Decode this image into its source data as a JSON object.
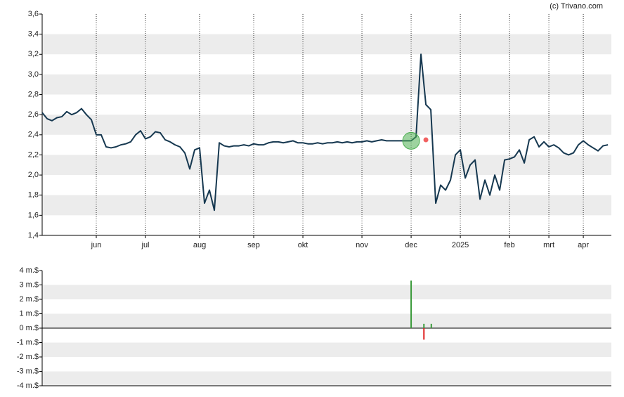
{
  "chart_data": [
    {
      "type": "line",
      "watermark": "(c) Trivano.com",
      "xlim": [
        0,
        115.7
      ],
      "xticks": [
        {
          "value": 11,
          "label": "jun"
        },
        {
          "value": 21,
          "label": "jul"
        },
        {
          "value": 32,
          "label": "aug"
        },
        {
          "value": 43,
          "label": "sep"
        },
        {
          "value": 53,
          "label": "okt"
        },
        {
          "value": 65,
          "label": "nov"
        },
        {
          "value": 75,
          "label": "dec"
        },
        {
          "value": 85,
          "label": "2025"
        },
        {
          "value": 95,
          "label": "feb"
        },
        {
          "value": 103,
          "label": "mrt"
        },
        {
          "value": 110,
          "label": "apr"
        }
      ],
      "ylim": [
        1.4,
        3.6
      ],
      "yticks": [
        {
          "value": 3.6,
          "label": "3,6"
        },
        {
          "value": 3.4,
          "label": "3,4"
        },
        {
          "value": 3.2,
          "label": "3,2"
        },
        {
          "value": 3.0,
          "label": "3,0"
        },
        {
          "value": 2.8,
          "label": "2,8"
        },
        {
          "value": 2.6,
          "label": "2,6"
        },
        {
          "value": 2.4,
          "label": "2,4"
        },
        {
          "value": 2.2,
          "label": "2,2"
        },
        {
          "value": 2.0,
          "label": "2,0"
        },
        {
          "value": 1.8,
          "label": "1,8"
        },
        {
          "value": 1.6,
          "label": "1,6"
        },
        {
          "value": 1.4,
          "label": "1,4"
        }
      ],
      "grid": true,
      "series": [
        {
          "color": "#163850",
          "values": [
            2.62,
            2.56,
            2.54,
            2.57,
            2.58,
            2.63,
            2.6,
            2.62,
            2.66,
            2.6,
            2.55,
            2.4,
            2.4,
            2.28,
            2.27,
            2.28,
            2.3,
            2.31,
            2.33,
            2.4,
            2.44,
            2.36,
            2.38,
            2.43,
            2.42,
            2.35,
            2.33,
            2.3,
            2.28,
            2.22,
            2.06,
            2.25,
            2.27,
            1.72,
            1.85,
            1.65,
            2.32,
            2.29,
            2.28,
            2.29,
            2.29,
            2.3,
            2.29,
            2.31,
            2.3,
            2.3,
            2.32,
            2.33,
            2.33,
            2.32,
            2.33,
            2.34,
            2.32,
            2.32,
            2.31,
            2.31,
            2.32,
            2.31,
            2.32,
            2.32,
            2.33,
            2.32,
            2.33,
            2.32,
            2.33,
            2.33,
            2.34,
            2.33,
            2.34,
            2.35,
            2.34,
            2.34,
            2.34,
            2.34,
            2.34,
            2.34,
            2.38,
            3.2,
            2.7,
            2.65,
            1.72,
            1.9,
            1.85,
            1.95,
            2.2,
            2.25,
            1.97,
            2.1,
            2.15,
            1.76,
            1.95,
            1.8,
            2.0,
            1.85,
            2.15,
            2.16,
            2.18,
            2.25,
            2.12,
            2.35,
            2.38,
            2.28,
            2.33,
            2.28,
            2.3,
            2.27,
            2.22,
            2.2,
            2.22,
            2.3,
            2.34,
            2.3,
            2.27,
            2.24,
            2.29,
            2.3
          ]
        }
      ],
      "markers": [
        {
          "x": 75,
          "value": 2.34,
          "color": "#4caf50"
        },
        {
          "x": 78,
          "value": 2.35,
          "color": "#f05050"
        }
      ]
    },
    {
      "type": "bar",
      "xlim": [
        0,
        115.7
      ],
      "ylim": [
        -4,
        4
      ],
      "yticks": [
        {
          "value": 4,
          "label": "4 m.$"
        },
        {
          "value": 3,
          "label": "3 m.$"
        },
        {
          "value": 2,
          "label": "2 m.$"
        },
        {
          "value": 1,
          "label": "1 m.$"
        },
        {
          "value": 0,
          "label": "0 m.$"
        },
        {
          "value": -1,
          "label": "-1 m.$"
        },
        {
          "value": -2,
          "label": "-2 m.$"
        },
        {
          "value": -3,
          "label": "-3 m.$"
        },
        {
          "value": -4,
          "label": "-4 m.$"
        }
      ],
      "grid": true,
      "bars": [
        {
          "x": 75,
          "value": 3.3,
          "color": "#3a9a3a"
        },
        {
          "x": 77.6,
          "value": 0.3,
          "color": "#3a9a3a"
        },
        {
          "x": 77.6,
          "value": -0.8,
          "color": "#e02020"
        },
        {
          "x": 79.1,
          "value": 0.3,
          "color": "#3a9a3a"
        }
      ]
    }
  ]
}
